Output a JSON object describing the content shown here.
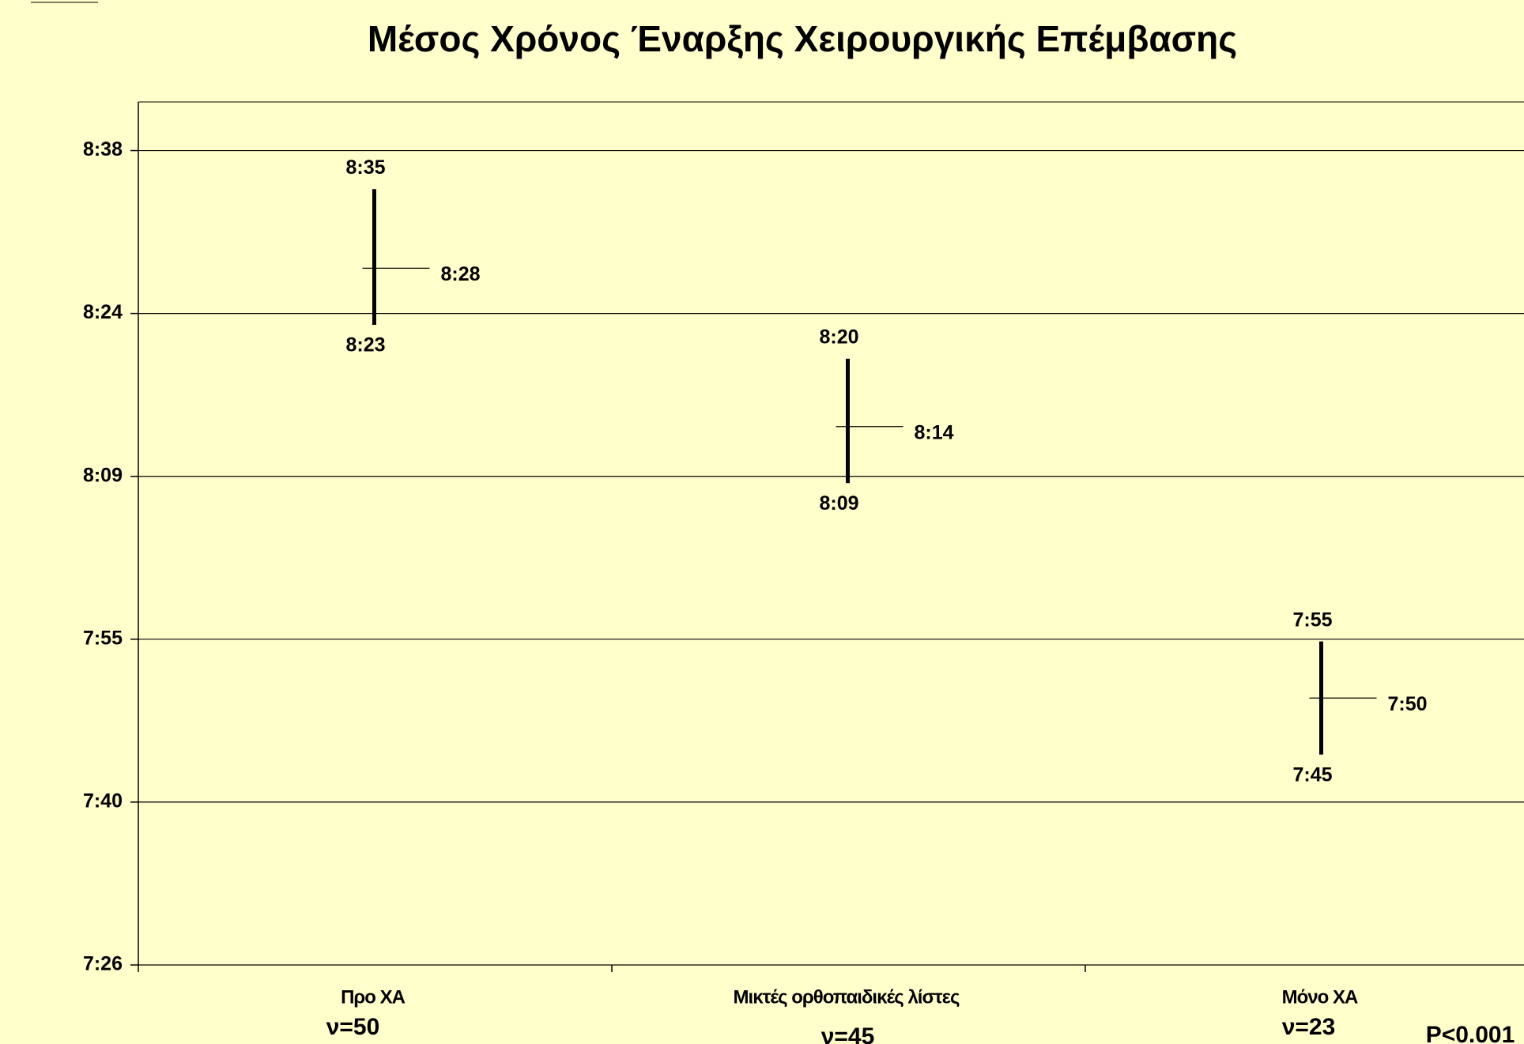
{
  "chart_data": {
    "type": "hilo",
    "title": "Μέσος Χρόνος Έναρξης Χειρουργικής Επέμβασης",
    "categories": [
      "Προ ΧΑ",
      "Μικτές ορθοπαιδικές λίστες",
      "Μόνο ΧΑ"
    ],
    "category_notes": [
      "ν=50",
      "ν=45",
      "ν=23"
    ],
    "annotation": "P<0.001",
    "high": {
      "values": [
        515,
        500,
        475
      ],
      "value_labels": [
        "8:35",
        "8:20",
        "7:55"
      ]
    },
    "low": {
      "values": [
        503,
        489,
        465
      ],
      "value_labels": [
        "8:23",
        "8:09",
        "7:45"
      ]
    },
    "mean": {
      "values": [
        508,
        494,
        470
      ],
      "value_labels": [
        "8:28",
        "8:14",
        "7:50"
      ]
    },
    "color": "#000000",
    "ylim": [
      446.4,
      522.7
    ],
    "yticks": [
      {
        "value": 446.4,
        "label": "7:26"
      },
      {
        "value": 460.8,
        "label": "7:40"
      },
      {
        "value": 475.2,
        "label": "7:55"
      },
      {
        "value": 489.6,
        "label": "8:09"
      },
      {
        "value": 504,
        "label": "8:24"
      },
      {
        "value": 518.4,
        "label": "8:38"
      }
    ],
    "grid": true
  }
}
